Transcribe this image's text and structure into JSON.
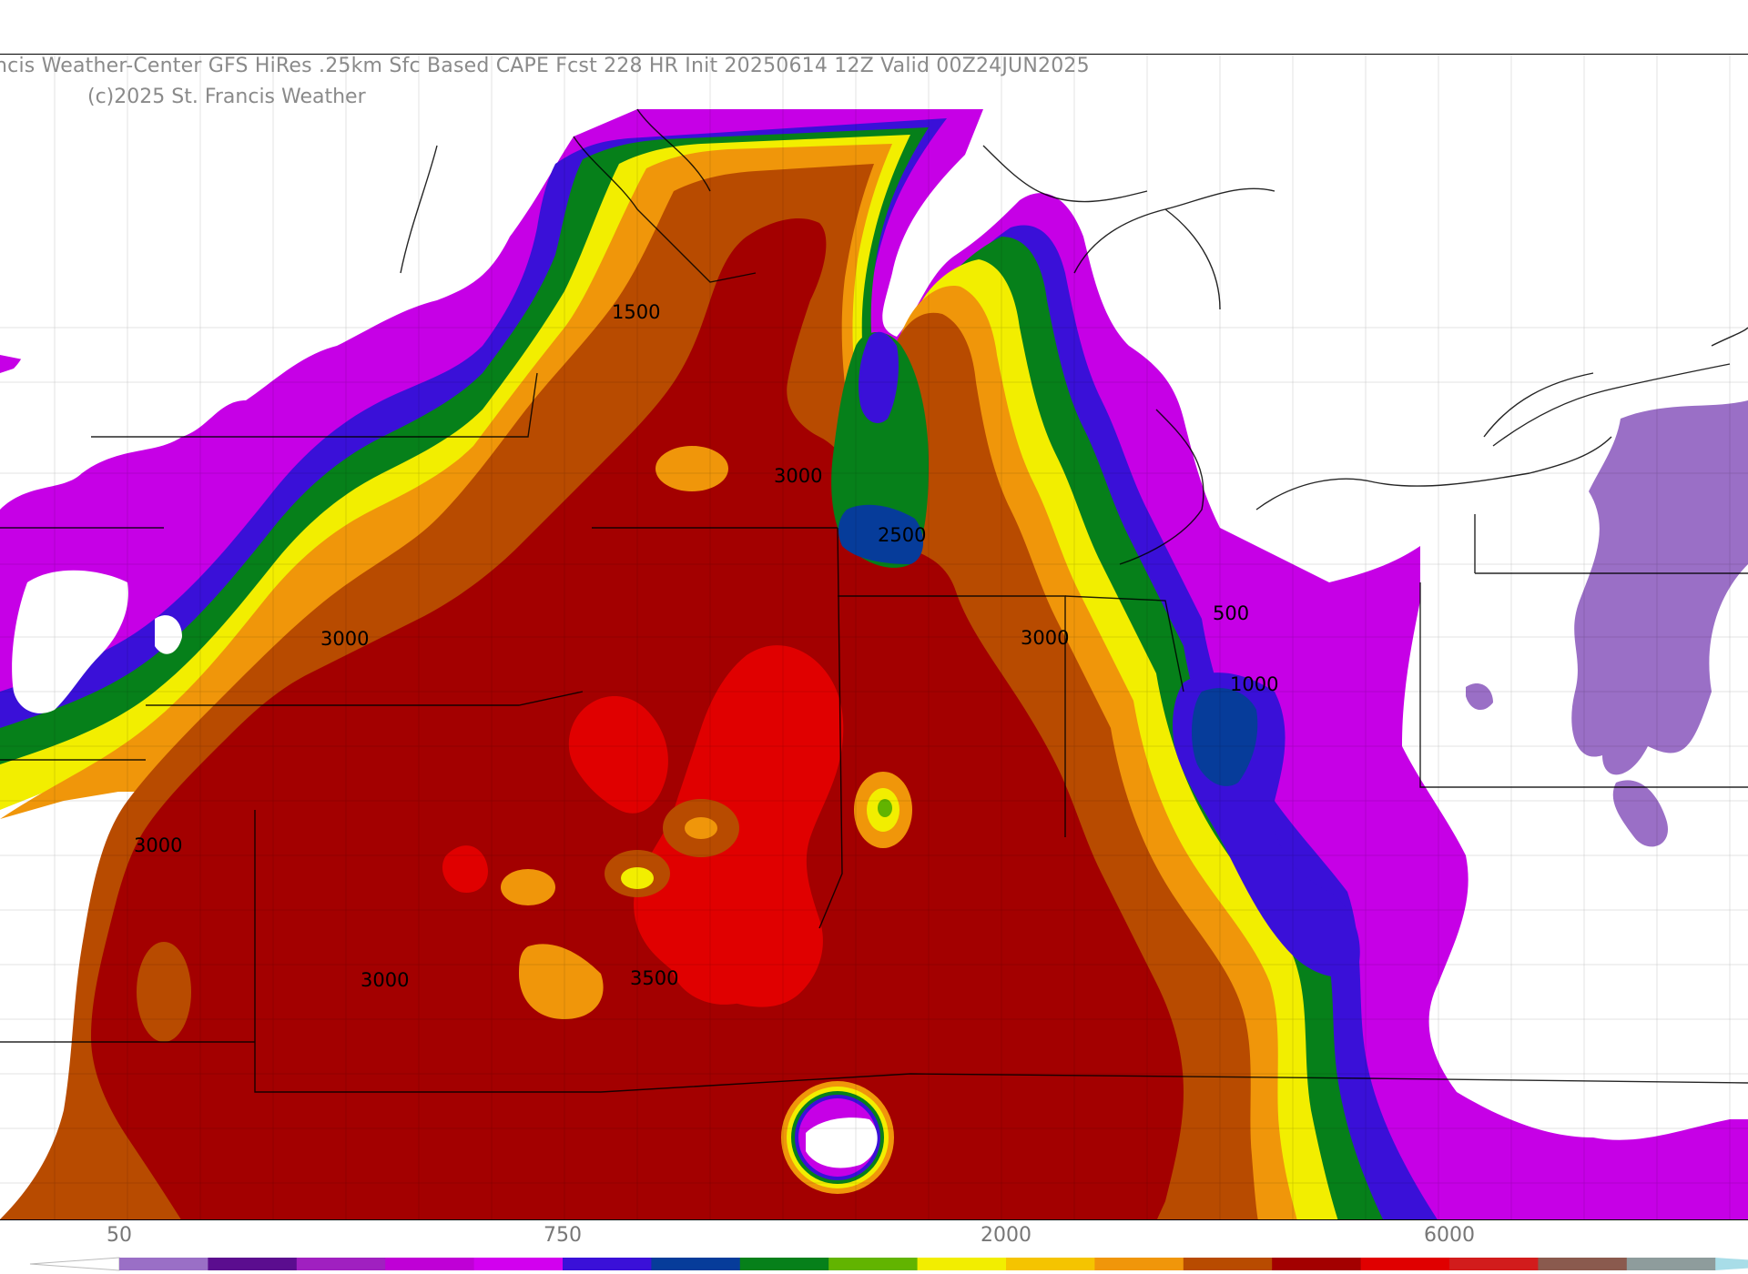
{
  "header": {
    "title": "ncis Weather-Center GFS HiRes .25km Sfc Based CAPE  Fcst 228 HR Init 20250614 12Z  Valid 00Z24JUN2025",
    "copyright": "(c)2025 St. Francis Weather"
  },
  "contour_labels": [
    {
      "text": "1500"
    },
    {
      "text": "3000"
    },
    {
      "text": "2500"
    },
    {
      "text": "3000"
    },
    {
      "text": "3000"
    },
    {
      "text": "500"
    },
    {
      "text": "1000"
    },
    {
      "text": "3000"
    },
    {
      "text": "3000"
    },
    {
      "text": "3500"
    }
  ],
  "legend": {
    "tick_labels": [
      "50",
      "750",
      "2000",
      "6000"
    ],
    "colors": [
      "#9a6fc6",
      "#5b0d8f",
      "#a020c0",
      "#bf00d6",
      "#d200ef",
      "#3a10d8",
      "#063c9a",
      "#06801a",
      "#62b400",
      "#f2ee00",
      "#f5c400",
      "#f0960a",
      "#b84b00",
      "#a30000",
      "#e00000",
      "#d21c1c",
      "#8a5a4e",
      "#8e9c9c",
      "#a8dde8"
    ]
  },
  "colors": {
    "purple_light": "#9a6fc6",
    "purple": "#c600e6",
    "blue": "#3a10d8",
    "navy": "#063c9a",
    "green": "#06801a",
    "lime": "#62b400",
    "yellow": "#f2ee00",
    "orange": "#f0960a",
    "brown": "#b84b00",
    "dark_red": "#a30000",
    "red": "#e00000"
  }
}
